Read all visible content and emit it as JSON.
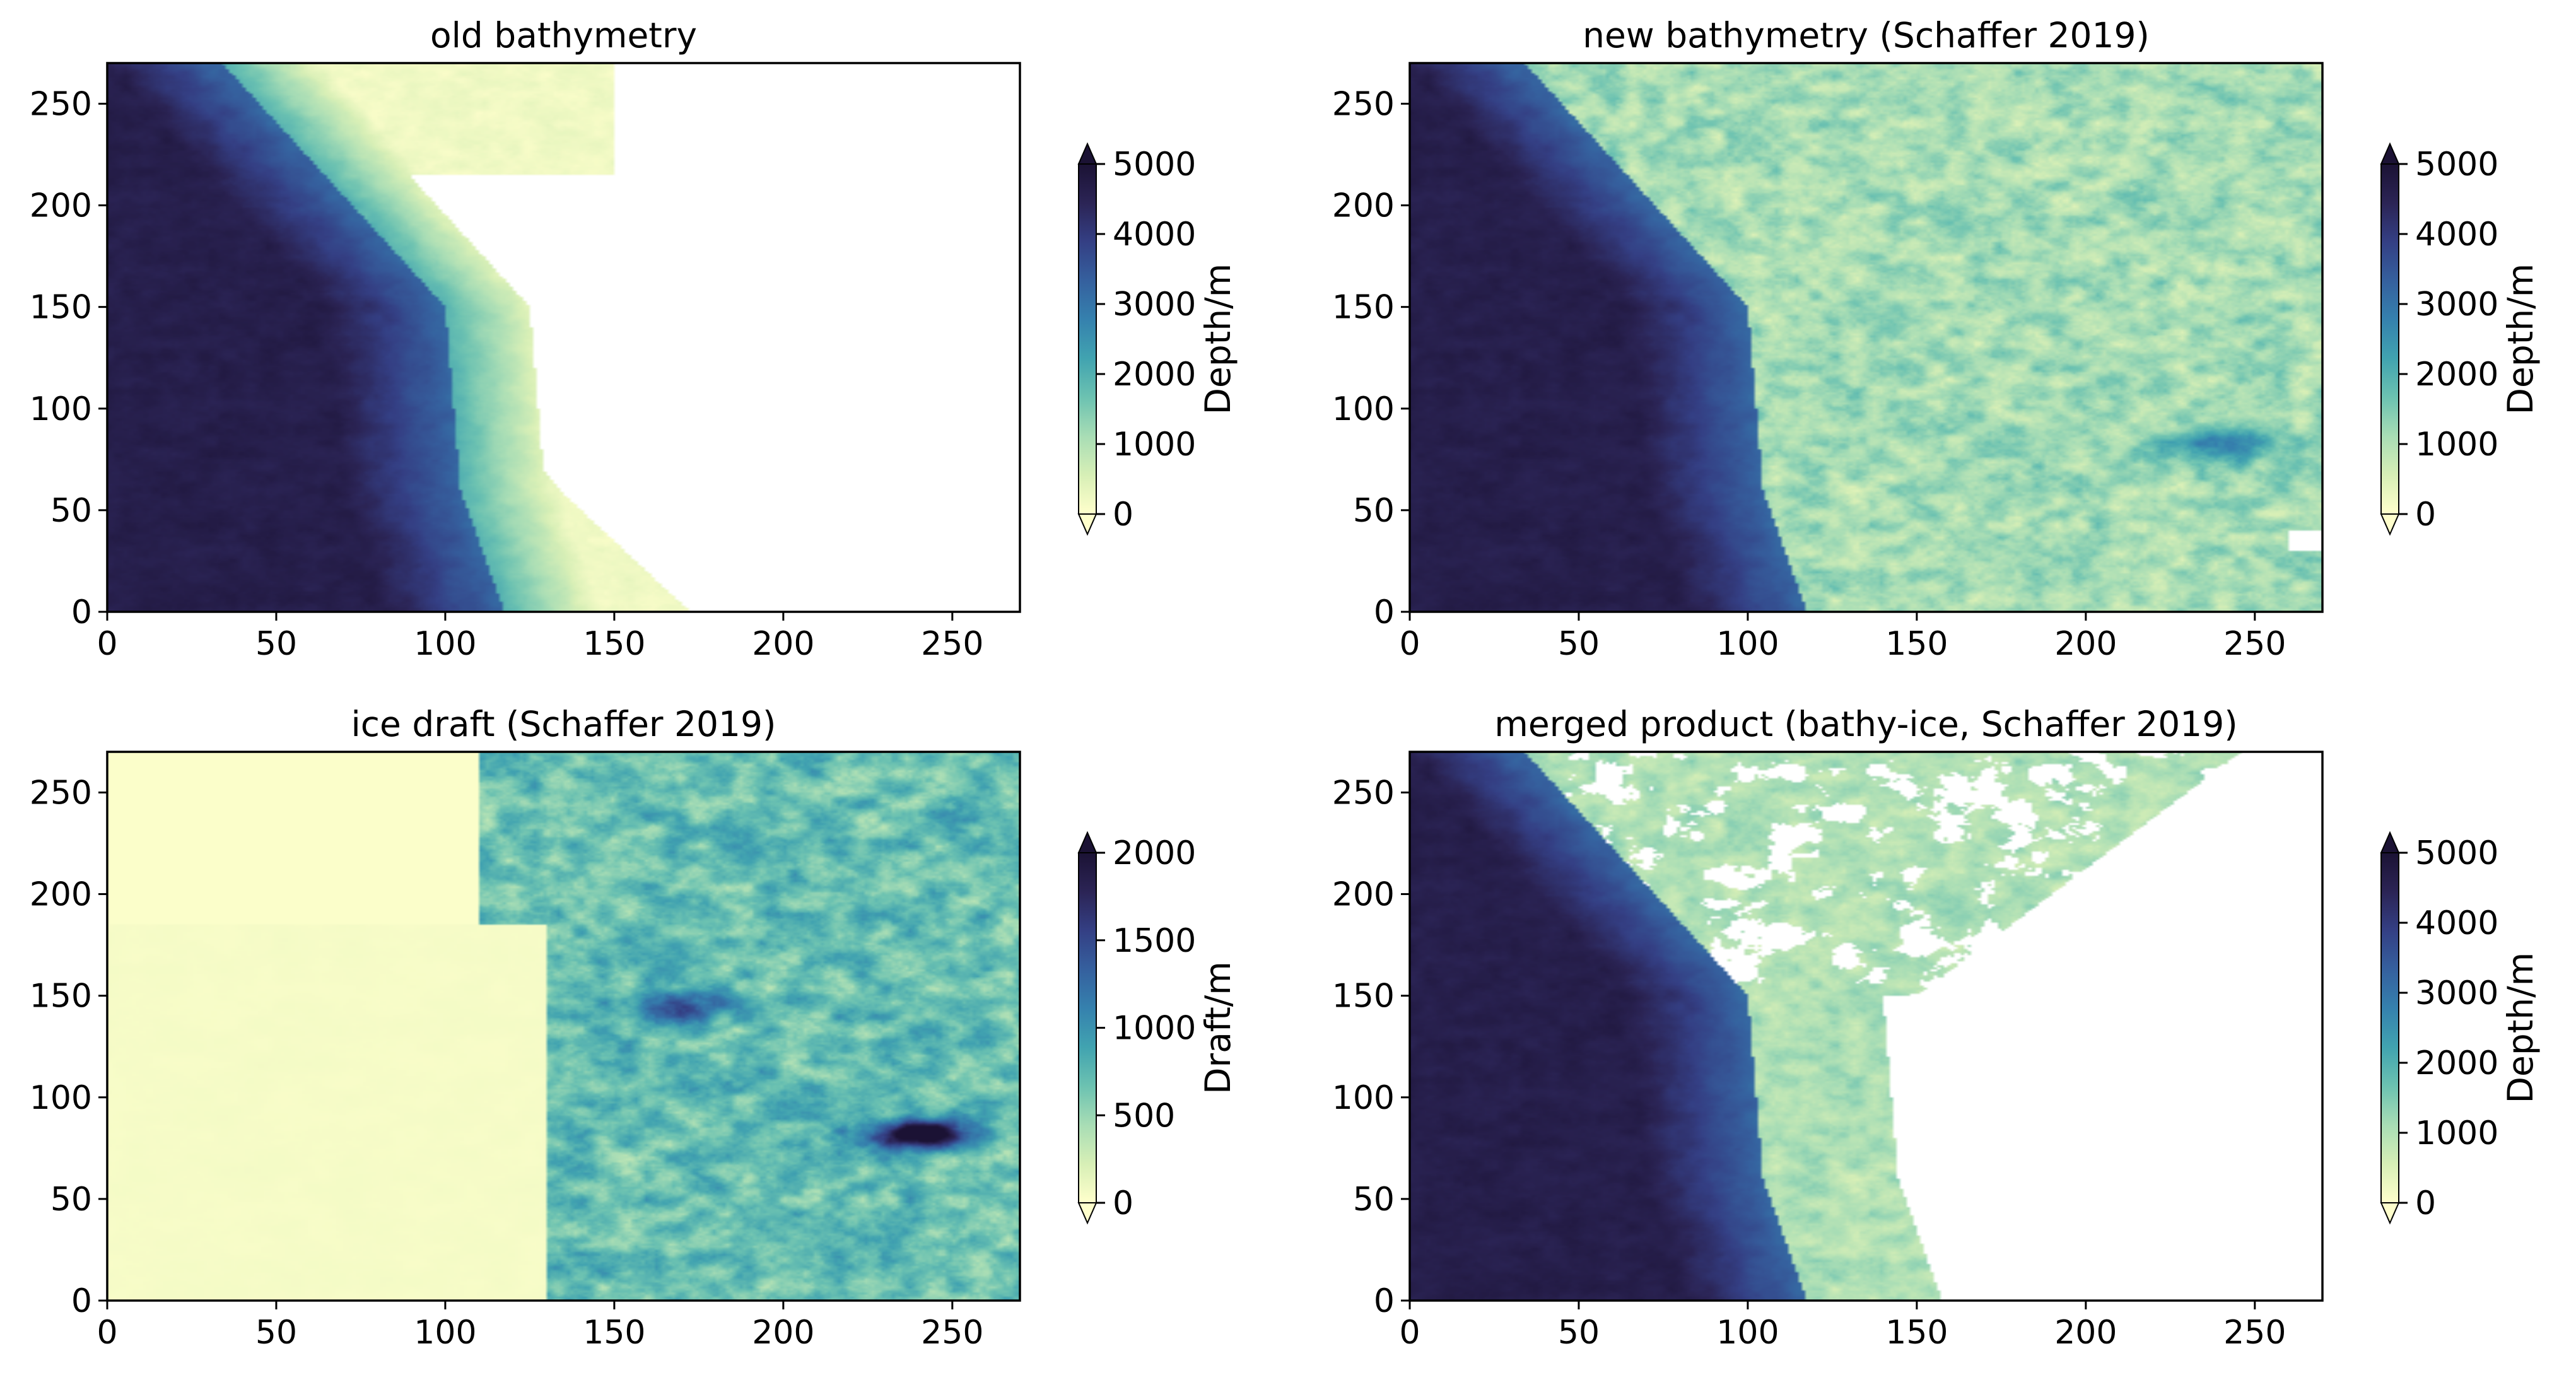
{
  "colormap": [
    "#ffffcc",
    "#d7efb6",
    "#a8ddb5",
    "#6cc2b1",
    "#41a3b0",
    "#3581ae",
    "#35609e",
    "#343f84",
    "#2b2455",
    "#1b1234"
  ],
  "chart_data": [
    {
      "type": "heatmap",
      "title": "old bathymetry",
      "xlim": [
        0,
        270
      ],
      "ylim": [
        0,
        270
      ],
      "xticks": [
        "0",
        "50",
        "100",
        "150",
        "200",
        "250"
      ],
      "yticks": [
        "0",
        "50",
        "100",
        "150",
        "200",
        "250"
      ],
      "colorbar": {
        "label": "Depth/m",
        "range": [
          0,
          5000
        ],
        "ticks": [
          "0",
          "1000",
          "2000",
          "3000",
          "4000",
          "5000"
        ],
        "extend": "both"
      },
      "field": "old_bathy"
    },
    {
      "type": "heatmap",
      "title": "new bathymetry (Schaffer 2019)",
      "xlim": [
        0,
        270
      ],
      "ylim": [
        0,
        270
      ],
      "xticks": [
        "0",
        "50",
        "100",
        "150",
        "200",
        "250"
      ],
      "yticks": [
        "0",
        "50",
        "100",
        "150",
        "200",
        "250"
      ],
      "colorbar": {
        "label": "Depth/m",
        "range": [
          0,
          5000
        ],
        "ticks": [
          "0",
          "1000",
          "2000",
          "3000",
          "4000",
          "5000"
        ],
        "extend": "both"
      },
      "field": "new_bathy"
    },
    {
      "type": "heatmap",
      "title": "ice draft (Schaffer 2019)",
      "xlim": [
        0,
        270
      ],
      "ylim": [
        0,
        270
      ],
      "xticks": [
        "0",
        "50",
        "100",
        "150",
        "200",
        "250"
      ],
      "yticks": [
        "0",
        "50",
        "100",
        "150",
        "200",
        "250"
      ],
      "colorbar": {
        "label": "Draft/m",
        "range": [
          0,
          2000
        ],
        "ticks": [
          "0",
          "500",
          "1000",
          "1500",
          "2000"
        ],
        "extend": "both"
      },
      "field": "ice_draft"
    },
    {
      "type": "heatmap",
      "title": "merged product (bathy-ice, Schaffer 2019)",
      "xlim": [
        0,
        270
      ],
      "ylim": [
        0,
        270
      ],
      "xticks": [
        "0",
        "50",
        "100",
        "150",
        "200",
        "250"
      ],
      "yticks": [
        "0",
        "50",
        "100",
        "150",
        "200",
        "250"
      ],
      "colorbar": {
        "label": "Depth/m",
        "range": [
          0,
          5000
        ],
        "ticks": [
          "0",
          "1000",
          "2000",
          "3000",
          "4000",
          "5000"
        ],
        "extend": "both"
      },
      "field": "merged"
    }
  ]
}
